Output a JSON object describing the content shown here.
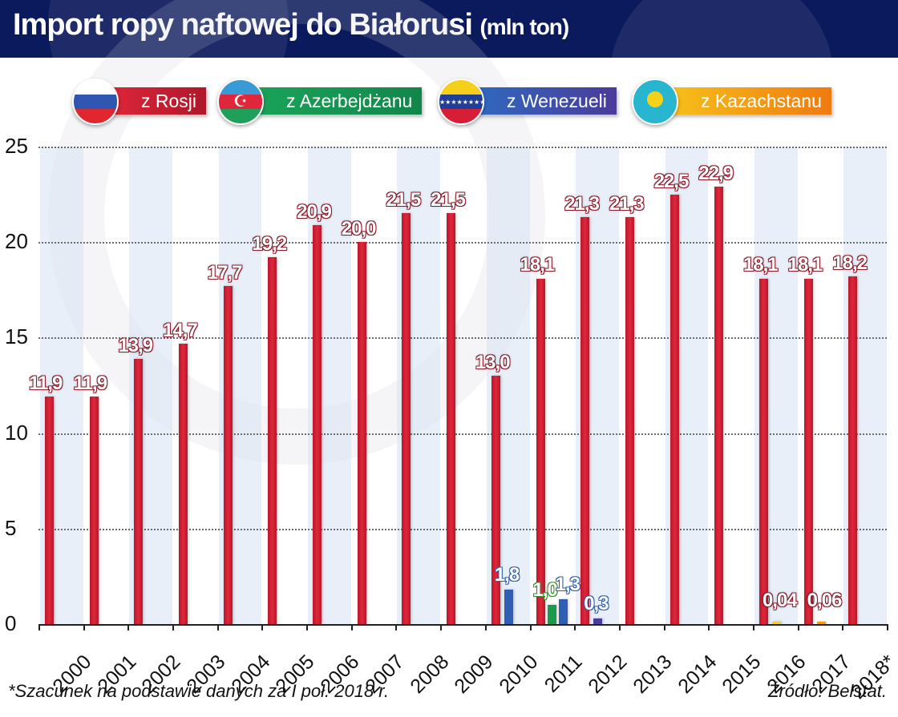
{
  "header": {
    "title": "Import ropy naftowej do Białorusi",
    "unit": "(mln ton)"
  },
  "legend": [
    {
      "label": "z Rosji",
      "country": "Russia",
      "color": "#c8202f",
      "flag_icon": "russia-flag-icon"
    },
    {
      "label": "z Azerbejdżanu",
      "country": "Azerbaijan",
      "color": "#1a9a4a",
      "flag_icon": "azerbaijan-flag-icon"
    },
    {
      "label": "z Wenezueli",
      "country": "Venezuela",
      "color": "#2f5fb5",
      "flag_icon": "venezuela-flag-icon"
    },
    {
      "label": "z Kazachstanu",
      "country": "Kazakhstan",
      "color": "#f29a12",
      "flag_icon": "kazakhstan-flag-icon"
    }
  ],
  "footer": {
    "note": "*Szacunek na podstawie danych za I poł. 2018 r.",
    "source": "Źródło: Belstat."
  },
  "chart_data": {
    "type": "bar",
    "title": "Import ropy naftowej do Białorusi (mln ton)",
    "xlabel": "",
    "ylabel": "mln ton",
    "ylim": [
      0,
      25
    ],
    "yticks": [
      0,
      5,
      10,
      15,
      20,
      25
    ],
    "grid": true,
    "legend_position": "top",
    "categories": [
      "2000",
      "2001",
      "2002",
      "2003",
      "2004",
      "2005",
      "2006",
      "2007",
      "2008",
      "2009",
      "2010",
      "2011",
      "2012",
      "2013",
      "2014",
      "2015",
      "2016",
      "2017",
      "2018*"
    ],
    "series": [
      {
        "name": "z Rosji",
        "color": "#c8202f",
        "values": [
          11.9,
          11.9,
          13.9,
          14.7,
          17.7,
          19.2,
          20.9,
          20.0,
          21.5,
          21.5,
          13.0,
          18.1,
          21.3,
          21.3,
          22.5,
          22.9,
          18.1,
          18.1,
          18.2
        ],
        "labels": [
          "11,9",
          "11,9",
          "13,9",
          "14,7",
          "17,7",
          "19,2",
          "20,9",
          "20,0",
          "21,5",
          "21,5",
          "13,0",
          "18,1",
          "21,3",
          "21,3",
          "22,5",
          "22,9",
          "18,1",
          "18,1",
          "18,2"
        ]
      },
      {
        "name": "z Azerbejdżanu",
        "color": "#1a9a4a",
        "values": [
          null,
          null,
          null,
          null,
          null,
          null,
          null,
          null,
          null,
          null,
          null,
          1.0,
          null,
          null,
          null,
          null,
          null,
          null,
          null
        ],
        "labels": [
          "",
          "",
          "",
          "",
          "",
          "",
          "",
          "",
          "",
          "",
          "",
          "1,0",
          "",
          "",
          "",
          "",
          "",
          "",
          ""
        ]
      },
      {
        "name": "z Wenezueli",
        "color": "#2f5fb5",
        "values": [
          null,
          null,
          null,
          null,
          null,
          null,
          null,
          null,
          null,
          null,
          1.8,
          1.3,
          0.3,
          null,
          null,
          null,
          null,
          null,
          null
        ],
        "labels": [
          "",
          "",
          "",
          "",
          "",
          "",
          "",
          "",
          "",
          "",
          "1,8",
          "1,3",
          "0,3",
          "",
          "",
          "",
          "",
          "",
          ""
        ]
      },
      {
        "name": "z Kazachstanu",
        "color": "#f29a12",
        "values": [
          null,
          null,
          null,
          null,
          null,
          null,
          null,
          null,
          null,
          null,
          null,
          null,
          null,
          null,
          null,
          null,
          0.04,
          0.06,
          null
        ],
        "labels": [
          "",
          "",
          "",
          "",
          "",
          "",
          "",
          "",
          "",
          "",
          "",
          "",
          "",
          "",
          "",
          "",
          "0,04",
          "0,06",
          ""
        ]
      }
    ],
    "annotations": [
      "2018* — Szacunek na podstawie danych za I poł. 2018 r."
    ],
    "source": "Źródło: Belstat."
  }
}
